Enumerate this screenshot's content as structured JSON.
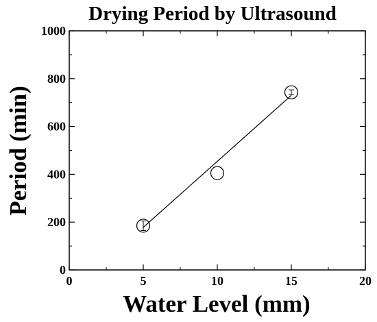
{
  "chart_data": {
    "type": "scatter",
    "title": "Drying Period by Ultrasound",
    "xlabel": "Water Level (mm)",
    "ylabel": "Period (min)",
    "xlim": [
      0,
      20
    ],
    "ylim": [
      0,
      1000
    ],
    "xticks": [
      0,
      5,
      10,
      15,
      20
    ],
    "yticks": [
      0,
      200,
      400,
      600,
      800,
      1000
    ],
    "grid": false,
    "series": [
      {
        "points": [
          {
            "x": 5,
            "y": 185,
            "err": 20
          },
          {
            "x": 10,
            "y": 405,
            "err": 0
          },
          {
            "x": 15,
            "y": 743,
            "err": 10
          }
        ]
      }
    ],
    "fit_line": {
      "x": [
        5,
        15
      ],
      "y": [
        178,
        730
      ]
    },
    "colors": {
      "marker": "#000000",
      "line": "#000000",
      "background": "#ffffff"
    }
  }
}
